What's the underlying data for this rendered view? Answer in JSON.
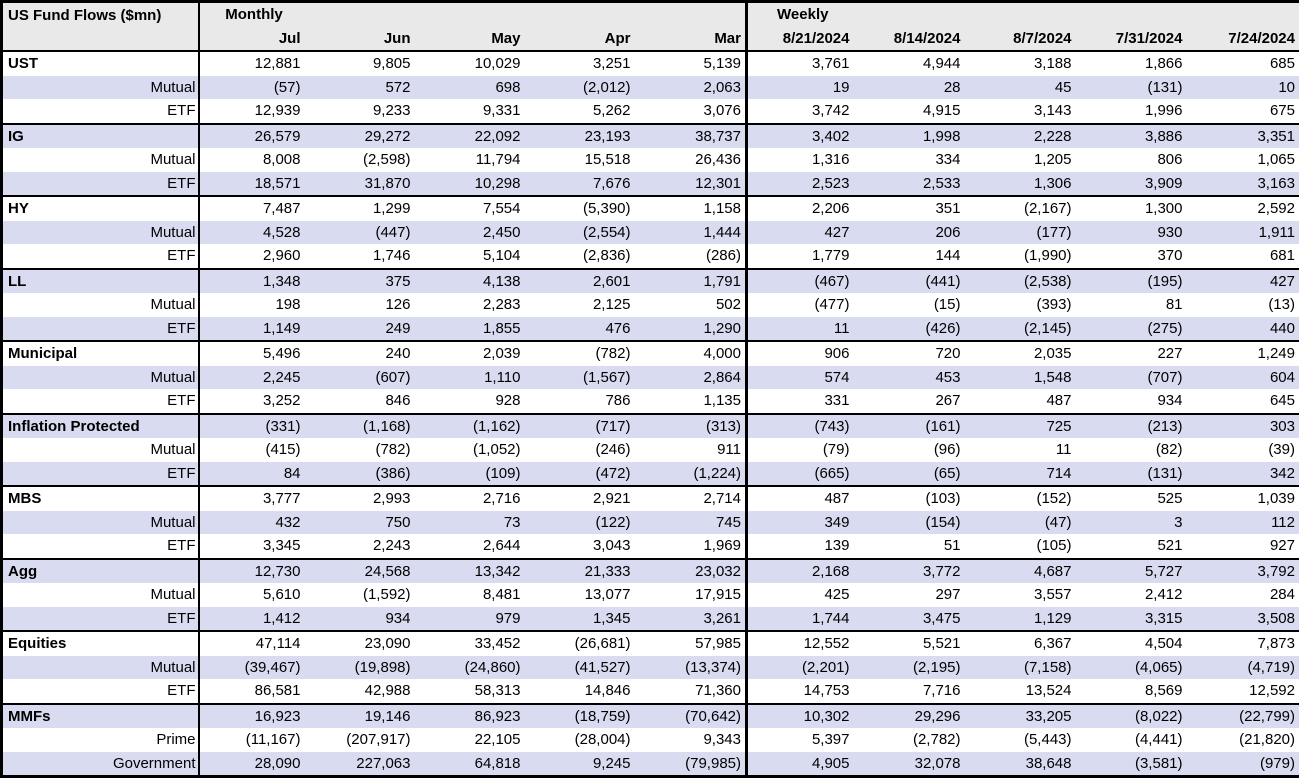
{
  "colors": {
    "alt_row_background": "#D9DCF1",
    "header_background": "#E9E9E9",
    "border": "#000000",
    "text": "#000000"
  },
  "chart_data": {
    "type": "table",
    "title": "US Fund Flows ($mn)",
    "layout": {
      "grid": "alternating white and lavender rows, thick black rules between groups and between Monthly/Weekly sections",
      "negative_format": "parentheses"
    },
    "sections": [
      {
        "label": "Monthly",
        "columns": [
          "Jul",
          "Jun",
          "May",
          "Apr",
          "Mar"
        ]
      },
      {
        "label": "Weekly",
        "columns": [
          "8/21/2024",
          "8/14/2024",
          "8/7/2024",
          "7/31/2024",
          "7/24/2024"
        ]
      }
    ],
    "groups": [
      {
        "name": "UST",
        "rows": [
          {
            "label": "UST",
            "monthly": [
              "12,881",
              "9,805",
              "10,029",
              "3,251",
              "5,139"
            ],
            "weekly": [
              "3,761",
              "4,944",
              "3,188",
              "1,866",
              "685"
            ]
          },
          {
            "label": "Mutual",
            "monthly": [
              "(57)",
              "572",
              "698",
              "(2,012)",
              "2,063"
            ],
            "weekly": [
              "19",
              "28",
              "45",
              "(131)",
              "10"
            ]
          },
          {
            "label": "ETF",
            "monthly": [
              "12,939",
              "9,233",
              "9,331",
              "5,262",
              "3,076"
            ],
            "weekly": [
              "3,742",
              "4,915",
              "3,143",
              "1,996",
              "675"
            ]
          }
        ]
      },
      {
        "name": "IG",
        "rows": [
          {
            "label": "IG",
            "monthly": [
              "26,579",
              "29,272",
              "22,092",
              "23,193",
              "38,737"
            ],
            "weekly": [
              "3,402",
              "1,998",
              "2,228",
              "3,886",
              "3,351"
            ]
          },
          {
            "label": "Mutual",
            "monthly": [
              "8,008",
              "(2,598)",
              "11,794",
              "15,518",
              "26,436"
            ],
            "weekly": [
              "1,316",
              "334",
              "1,205",
              "806",
              "1,065"
            ]
          },
          {
            "label": "ETF",
            "monthly": [
              "18,571",
              "31,870",
              "10,298",
              "7,676",
              "12,301"
            ],
            "weekly": [
              "2,523",
              "2,533",
              "1,306",
              "3,909",
              "3,163"
            ]
          }
        ]
      },
      {
        "name": "HY",
        "rows": [
          {
            "label": "HY",
            "monthly": [
              "7,487",
              "1,299",
              "7,554",
              "(5,390)",
              "1,158"
            ],
            "weekly": [
              "2,206",
              "351",
              "(2,167)",
              "1,300",
              "2,592"
            ]
          },
          {
            "label": "Mutual",
            "monthly": [
              "4,528",
              "(447)",
              "2,450",
              "(2,554)",
              "1,444"
            ],
            "weekly": [
              "427",
              "206",
              "(177)",
              "930",
              "1,911"
            ]
          },
          {
            "label": "ETF",
            "monthly": [
              "2,960",
              "1,746",
              "5,104",
              "(2,836)",
              "(286)"
            ],
            "weekly": [
              "1,779",
              "144",
              "(1,990)",
              "370",
              "681"
            ]
          }
        ]
      },
      {
        "name": "LL",
        "rows": [
          {
            "label": "LL",
            "monthly": [
              "1,348",
              "375",
              "4,138",
              "2,601",
              "1,791"
            ],
            "weekly": [
              "(467)",
              "(441)",
              "(2,538)",
              "(195)",
              "427"
            ]
          },
          {
            "label": "Mutual",
            "monthly": [
              "198",
              "126",
              "2,283",
              "2,125",
              "502"
            ],
            "weekly": [
              "(477)",
              "(15)",
              "(393)",
              "81",
              "(13)"
            ]
          },
          {
            "label": "ETF",
            "monthly": [
              "1,149",
              "249",
              "1,855",
              "476",
              "1,290"
            ],
            "weekly": [
              "11",
              "(426)",
              "(2,145)",
              "(275)",
              "440"
            ]
          }
        ]
      },
      {
        "name": "Municipal",
        "rows": [
          {
            "label": "Municipal",
            "monthly": [
              "5,496",
              "240",
              "2,039",
              "(782)",
              "4,000"
            ],
            "weekly": [
              "906",
              "720",
              "2,035",
              "227",
              "1,249"
            ]
          },
          {
            "label": "Mutual",
            "monthly": [
              "2,245",
              "(607)",
              "1,110",
              "(1,567)",
              "2,864"
            ],
            "weekly": [
              "574",
              "453",
              "1,548",
              "(707)",
              "604"
            ]
          },
          {
            "label": "ETF",
            "monthly": [
              "3,252",
              "846",
              "928",
              "786",
              "1,135"
            ],
            "weekly": [
              "331",
              "267",
              "487",
              "934",
              "645"
            ]
          }
        ]
      },
      {
        "name": "Inflation Protected",
        "rows": [
          {
            "label": "Inflation Protected",
            "monthly": [
              "(331)",
              "(1,168)",
              "(1,162)",
              "(717)",
              "(313)"
            ],
            "weekly": [
              "(743)",
              "(161)",
              "725",
              "(213)",
              "303"
            ]
          },
          {
            "label": "Mutual",
            "monthly": [
              "(415)",
              "(782)",
              "(1,052)",
              "(246)",
              "911"
            ],
            "weekly": [
              "(79)",
              "(96)",
              "11",
              "(82)",
              "(39)"
            ]
          },
          {
            "label": "ETF",
            "monthly": [
              "84",
              "(386)",
              "(109)",
              "(472)",
              "(1,224)"
            ],
            "weekly": [
              "(665)",
              "(65)",
              "714",
              "(131)",
              "342"
            ]
          }
        ]
      },
      {
        "name": "MBS",
        "rows": [
          {
            "label": "MBS",
            "monthly": [
              "3,777",
              "2,993",
              "2,716",
              "2,921",
              "2,714"
            ],
            "weekly": [
              "487",
              "(103)",
              "(152)",
              "525",
              "1,039"
            ]
          },
          {
            "label": "Mutual",
            "monthly": [
              "432",
              "750",
              "73",
              "(122)",
              "745"
            ],
            "weekly": [
              "349",
              "(154)",
              "(47)",
              "3",
              "112"
            ]
          },
          {
            "label": "ETF",
            "monthly": [
              "3,345",
              "2,243",
              "2,644",
              "3,043",
              "1,969"
            ],
            "weekly": [
              "139",
              "51",
              "(105)",
              "521",
              "927"
            ]
          }
        ]
      },
      {
        "name": "Agg",
        "rows": [
          {
            "label": "Agg",
            "monthly": [
              "12,730",
              "24,568",
              "13,342",
              "21,333",
              "23,032"
            ],
            "weekly": [
              "2,168",
              "3,772",
              "4,687",
              "5,727",
              "3,792"
            ]
          },
          {
            "label": "Mutual",
            "monthly": [
              "5,610",
              "(1,592)",
              "8,481",
              "13,077",
              "17,915"
            ],
            "weekly": [
              "425",
              "297",
              "3,557",
              "2,412",
              "284"
            ]
          },
          {
            "label": "ETF",
            "monthly": [
              "1,412",
              "934",
              "979",
              "1,345",
              "3,261"
            ],
            "weekly": [
              "1,744",
              "3,475",
              "1,129",
              "3,315",
              "3,508"
            ]
          }
        ]
      },
      {
        "name": "Equities",
        "rows": [
          {
            "label": "Equities",
            "monthly": [
              "47,114",
              "23,090",
              "33,452",
              "(26,681)",
              "57,985"
            ],
            "weekly": [
              "12,552",
              "5,521",
              "6,367",
              "4,504",
              "7,873"
            ]
          },
          {
            "label": "Mutual",
            "monthly": [
              "(39,467)",
              "(19,898)",
              "(24,860)",
              "(41,527)",
              "(13,374)"
            ],
            "weekly": [
              "(2,201)",
              "(2,195)",
              "(7,158)",
              "(4,065)",
              "(4,719)"
            ]
          },
          {
            "label": "ETF",
            "monthly": [
              "86,581",
              "42,988",
              "58,313",
              "14,846",
              "71,360"
            ],
            "weekly": [
              "14,753",
              "7,716",
              "13,524",
              "8,569",
              "12,592"
            ]
          }
        ]
      },
      {
        "name": "MMFs",
        "rows": [
          {
            "label": "MMFs",
            "monthly": [
              "16,923",
              "19,146",
              "86,923",
              "(18,759)",
              "(70,642)"
            ],
            "weekly": [
              "10,302",
              "29,296",
              "33,205",
              "(8,022)",
              "(22,799)"
            ]
          },
          {
            "label": "Prime",
            "monthly": [
              "(11,167)",
              "(207,917)",
              "22,105",
              "(28,004)",
              "9,343"
            ],
            "weekly": [
              "5,397",
              "(2,782)",
              "(5,443)",
              "(4,441)",
              "(21,820)"
            ]
          },
          {
            "label": "Government",
            "monthly": [
              "28,090",
              "227,063",
              "64,818",
              "9,245",
              "(79,985)"
            ],
            "weekly": [
              "4,905",
              "32,078",
              "38,648",
              "(3,581)",
              "(979)"
            ]
          }
        ]
      }
    ]
  }
}
